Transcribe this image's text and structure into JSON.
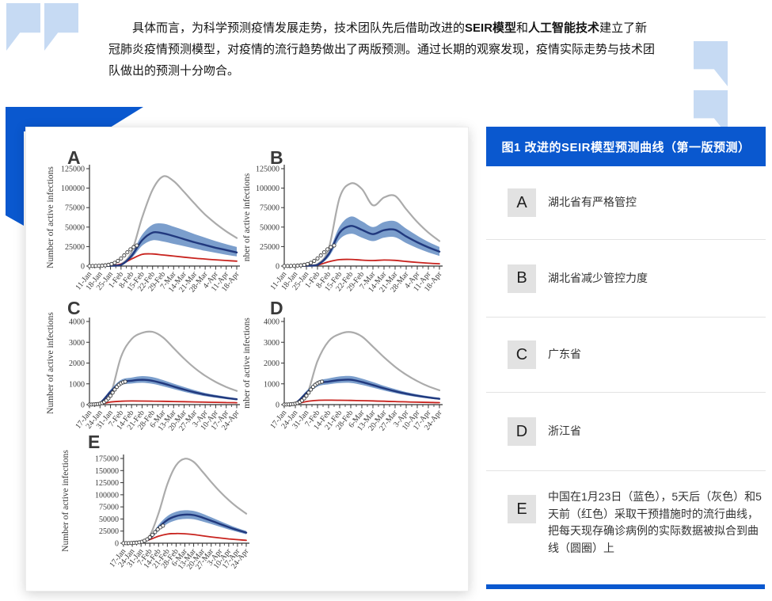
{
  "accent_color": "#0a58cf",
  "quote_icon_color": "#c6daf3",
  "quote": {
    "segments": [
      {
        "text": "具体而言，为科学预测疫情发展走势，技术团队先后借助改进的",
        "bold": false
      },
      {
        "text": "SEIR模型",
        "bold": true
      },
      {
        "text": "和",
        "bold": false
      },
      {
        "text": "人工智能技术",
        "bold": true
      },
      {
        "text": "建立了新冠肺炎疫情预测模型，对疫情的流行趋势做出了两版预测。通过长期的观察发现，疫情实际走势与技术团队做出的预测十分吻合。",
        "bold": false
      }
    ]
  },
  "panel": {
    "title": "图1 改进的SEIR模型预测曲线（第一版预测）",
    "items": [
      {
        "key": "A",
        "text": "湖北省有严格管控"
      },
      {
        "key": "B",
        "text": "湖北省减少管控力度"
      },
      {
        "key": "C",
        "text": "广东省"
      },
      {
        "key": "D",
        "text": "浙江省"
      },
      {
        "key": "E",
        "text": "中国在1月23日（蓝色），5天后（灰色）和5天前（红色）采取干预措施时的流行曲线，把每天现存确诊病例的实际数据被拟合到曲线（圆圈）上"
      }
    ]
  },
  "chart_colors": {
    "gray_line": "#ababab",
    "blue_line": "#21397e",
    "blue_band": "#6d94c7",
    "red_line": "#c8231e",
    "axis": "#333333",
    "circle_fill": "#ffffff",
    "circle_stroke": "#3a3a3a"
  },
  "chart_data": [
    {
      "id": "A",
      "letter": "A",
      "type": "line",
      "ylabel": "Number of active infections",
      "ylim": [
        0,
        125000
      ],
      "yticks": [
        0,
        25000,
        50000,
        75000,
        100000,
        125000
      ],
      "x_tick_labels": [
        "11-Jan",
        "18-Jan",
        "25-Jan",
        "1-Feb",
        "8-Feb",
        "15-Feb",
        "22-Feb",
        "29-Feb",
        "7-Mar",
        "14-Mar",
        "21-Mar",
        "28-Mar",
        "4-Apr",
        "11-Apr",
        "18-Apr"
      ],
      "series": [
        {
          "name": "no-intervention-gray",
          "color": "#ababab",
          "values": [
            100,
            200,
            600,
            2500,
            18000,
            62000,
            98000,
            115000,
            109000,
            95000,
            80000,
            66000,
            54500,
            44500,
            36000
          ]
        },
        {
          "name": "intervention-23-jan-blue",
          "color": "#21397e",
          "values": [
            60,
            150,
            400,
            1500,
            13000,
            33000,
            43000,
            42000,
            38500,
            34500,
            30500,
            27000,
            23500,
            20500,
            17500
          ],
          "band_upper": [
            80,
            200,
            600,
            2200,
            16000,
            40000,
            53000,
            54500,
            50500,
            46000,
            41000,
            36500,
            32000,
            28000,
            24500
          ],
          "band_lower": [
            40,
            100,
            250,
            900,
            10000,
            26000,
            33000,
            31500,
            28500,
            25500,
            22500,
            19500,
            17000,
            14500,
            12500
          ]
        },
        {
          "name": "5-days-earlier-red",
          "color": "#c8231e",
          "values": [
            50,
            150,
            500,
            2500,
            9000,
            15000,
            15500,
            14200,
            12800,
            11400,
            10100,
            9000,
            8000,
            7100,
            6300
          ]
        }
      ],
      "fitted_points": {
        "x": [
          0,
          0.3,
          0.6,
          0.9,
          1.2,
          1.5,
          1.8,
          2.1,
          2.4,
          2.7,
          3.0,
          3.3,
          3.6,
          3.9,
          4.2,
          4.5
        ],
        "y": [
          60,
          110,
          180,
          310,
          540,
          920,
          1550,
          2590,
          4180,
          6580,
          9770,
          13630,
          17670,
          21400,
          24300,
          26400
        ]
      }
    },
    {
      "id": "B",
      "letter": "B",
      "type": "line",
      "ylabel": "nber of active infections",
      "ylim": [
        0,
        125000
      ],
      "yticks": [
        0,
        25000,
        50000,
        75000,
        100000,
        125000
      ],
      "x_tick_labels": [
        "11-Jan",
        "18-Jan",
        "25-Jan",
        "1-Feb",
        "8-Feb",
        "15-Feb",
        "22-Feb",
        "29-Feb",
        "7-Mar",
        "14-Mar",
        "21-Mar",
        "28-Mar",
        "4-Apr",
        "11-Apr",
        "18-Apr"
      ],
      "series": [
        {
          "name": "no-intervention-gray",
          "color": "#ababab",
          "values": [
            100,
            200,
            600,
            2500,
            22000,
            88000,
            106000,
            99000,
            78000,
            88000,
            90000,
            73000,
            56500,
            43000,
            32000
          ]
        },
        {
          "name": "intervention-23-jan-blue",
          "color": "#21397e",
          "values": [
            60,
            150,
            400,
            1500,
            15000,
            43000,
            51500,
            46500,
            41000,
            46000,
            46500,
            38000,
            30500,
            24000,
            18500
          ],
          "band_upper": [
            80,
            200,
            600,
            2200,
            18000,
            51000,
            63500,
            57500,
            50000,
            56500,
            57500,
            48000,
            39000,
            31000,
            24500
          ],
          "band_lower": [
            40,
            100,
            250,
            900,
            11500,
            34500,
            41500,
            36500,
            32000,
            36500,
            37000,
            29500,
            23000,
            17500,
            13000
          ]
        },
        {
          "name": "5-days-earlier-red",
          "color": "#c8231e",
          "values": [
            50,
            120,
            350,
            1200,
            5500,
            8200,
            8500,
            7600,
            7100,
            7700,
            7300,
            5900,
            4700,
            3700,
            2900
          ]
        }
      ],
      "fitted_points": {
        "x": [
          0,
          0.3,
          0.6,
          0.9,
          1.2,
          1.5,
          1.8,
          2.1,
          2.4,
          2.7,
          3.0,
          3.3,
          3.6,
          3.9,
          4.2,
          4.5
        ],
        "y": [
          60,
          110,
          180,
          310,
          540,
          920,
          1550,
          2590,
          4180,
          6580,
          9770,
          13630,
          17670,
          21400,
          24300,
          26400
        ]
      }
    },
    {
      "id": "C",
      "letter": "C",
      "type": "line",
      "ylabel": "Number of active infections",
      "ylim": [
        0,
        4000
      ],
      "yticks": [
        0,
        1000,
        2000,
        3000,
        4000
      ],
      "x_tick_labels": [
        "17-Jan",
        "24-Jan",
        "31-Jan",
        "7-Feb",
        "14-Feb",
        "21-Feb",
        "28-Feb",
        "6-Mar",
        "13-Mar",
        "20-Mar",
        "27-Mar",
        "3-Apr",
        "10-Apr",
        "17-Apr",
        "24-Apr"
      ],
      "series": [
        {
          "name": "no-intervention-gray",
          "color": "#ababab",
          "values": [
            10,
            60,
            500,
            2300,
            3150,
            3450,
            3500,
            3230,
            2720,
            2210,
            1760,
            1390,
            1090,
            850,
            660
          ]
        },
        {
          "name": "intervention-23-jan-blue",
          "color": "#21397e",
          "values": [
            8,
            80,
            620,
            1060,
            1150,
            1195,
            1145,
            1020,
            870,
            725,
            595,
            485,
            395,
            320,
            260
          ],
          "band_upper": [
            12,
            110,
            720,
            1190,
            1300,
            1370,
            1325,
            1180,
            1010,
            845,
            695,
            565,
            465,
            380,
            310
          ],
          "band_lower": [
            5,
            55,
            520,
            930,
            1015,
            1050,
            1000,
            880,
            745,
            615,
            500,
            405,
            330,
            265,
            215
          ]
        },
        {
          "name": "5-days-earlier-red",
          "color": "#c8231e",
          "values": [
            5,
            25,
            125,
            165,
            175,
            172,
            168,
            160,
            150,
            140,
            129,
            119,
            109,
            100,
            93
          ]
        }
      ],
      "fitted_points": {
        "x": [
          0,
          0.2,
          0.4,
          0.6,
          0.8,
          1.0,
          1.2,
          1.4,
          1.6,
          1.8,
          2.0,
          2.2,
          2.4,
          2.6,
          2.8,
          3.0,
          3.2,
          3.4
        ],
        "y": [
          3,
          5,
          10,
          17,
          28,
          47,
          77,
          125,
          197,
          300,
          427,
          575,
          723,
          852,
          953,
          1025,
          1073,
          1104
        ]
      }
    },
    {
      "id": "D",
      "letter": "D",
      "type": "line",
      "ylabel": "mber of active infections",
      "ylim": [
        0,
        4000
      ],
      "yticks": [
        0,
        1000,
        2000,
        3000,
        4000
      ],
      "x_tick_labels": [
        "17-Jan",
        "24-Jan",
        "31-Jan",
        "7-Feb",
        "14-Feb",
        "21-Feb",
        "28-Feb",
        "6-Mar",
        "13-Mar",
        "20-Mar",
        "27-Mar",
        "3-Apr",
        "10-Apr",
        "17-Apr",
        "24-Apr"
      ],
      "series": [
        {
          "name": "no-intervention-gray",
          "color": "#ababab",
          "values": [
            10,
            50,
            420,
            2100,
            3050,
            3400,
            3490,
            3280,
            2790,
            2280,
            1820,
            1440,
            1130,
            880,
            690
          ]
        },
        {
          "name": "intervention-23-jan-blue",
          "color": "#21397e",
          "values": [
            8,
            70,
            560,
            1000,
            1110,
            1180,
            1195,
            1090,
            940,
            785,
            645,
            525,
            425,
            345,
            280
          ],
          "band_upper": [
            12,
            100,
            660,
            1130,
            1260,
            1355,
            1375,
            1255,
            1085,
            905,
            745,
            605,
            495,
            405,
            330
          ],
          "band_lower": [
            5,
            45,
            460,
            870,
            975,
            1035,
            1045,
            950,
            815,
            680,
            555,
            450,
            365,
            295,
            240
          ]
        },
        {
          "name": "5-days-earlier-red",
          "color": "#c8231e",
          "values": [
            5,
            25,
            150,
            205,
            215,
            210,
            202,
            192,
            178,
            162,
            147,
            132,
            118,
            106,
            96
          ]
        }
      ],
      "fitted_points": {
        "x": [
          0,
          0.2,
          0.4,
          0.6,
          0.8,
          1.0,
          1.2,
          1.4,
          1.6,
          1.8,
          2.0,
          2.2,
          2.4,
          2.6,
          2.8,
          3.0,
          3.2,
          3.4
        ],
        "y": [
          3,
          5,
          10,
          17,
          28,
          47,
          77,
          125,
          197,
          300,
          427,
          575,
          723,
          852,
          953,
          1025,
          1073,
          1104
        ]
      }
    },
    {
      "id": "E",
      "letter": "E",
      "type": "line",
      "ylabel": "Number of active infections",
      "ylim": [
        0,
        175000
      ],
      "yticks": [
        0,
        25000,
        50000,
        75000,
        100000,
        125000,
        150000,
        175000
      ],
      "x_tick_labels": [
        "17-Jan",
        "24-Jan",
        "31-Jan",
        "7-Feb",
        "14-Feb",
        "21-Feb",
        "28-Feb",
        "6-Mar",
        "13-Mar",
        "20-Mar",
        "27-Mar",
        "3-Apr",
        "10-Apr",
        "17-Apr",
        "24-Apr"
      ],
      "series": [
        {
          "name": "no-intervention-gray",
          "color": "#ababab",
          "values": [
            200,
            800,
            4000,
            16000,
            62000,
            122000,
            161000,
            174500,
            168000,
            148000,
            126500,
            106500,
            89000,
            74000,
            61000
          ]
        },
        {
          "name": "intervention-23-jan-blue",
          "color": "#21397e",
          "values": [
            120,
            400,
            2200,
            9500,
            32000,
            48000,
            56000,
            59000,
            58000,
            53000,
            46500,
            39800,
            33200,
            27200,
            21800
          ],
          "band_upper": [
            160,
            550,
            3000,
            12500,
            38000,
            56000,
            65000,
            68000,
            66500,
            61000,
            53500,
            45800,
            38200,
            31200,
            25200
          ],
          "band_lower": [
            80,
            280,
            1500,
            6800,
            26000,
            40000,
            47500,
            50000,
            49500,
            45000,
            39500,
            33800,
            28200,
            23200,
            18400
          ]
        },
        {
          "name": "5-days-earlier-red",
          "color": "#c8231e",
          "values": [
            100,
            350,
            2000,
            7500,
            14500,
            18800,
            20000,
            19400,
            17800,
            15400,
            13000,
            10800,
            8900,
            7300,
            5900
          ]
        }
      ],
      "fitted_points": {
        "x": [
          0,
          0.3,
          0.6,
          0.9,
          1.2,
          1.5,
          1.8,
          2.1,
          2.4,
          2.7,
          3.0,
          3.3,
          3.6,
          3.9,
          4.2,
          4.5
        ],
        "y": [
          70,
          125,
          215,
          370,
          640,
          1080,
          1830,
          3050,
          5000,
          7980,
          12070,
          17280,
          22890,
          28340,
          32790,
          36140
        ]
      }
    }
  ]
}
